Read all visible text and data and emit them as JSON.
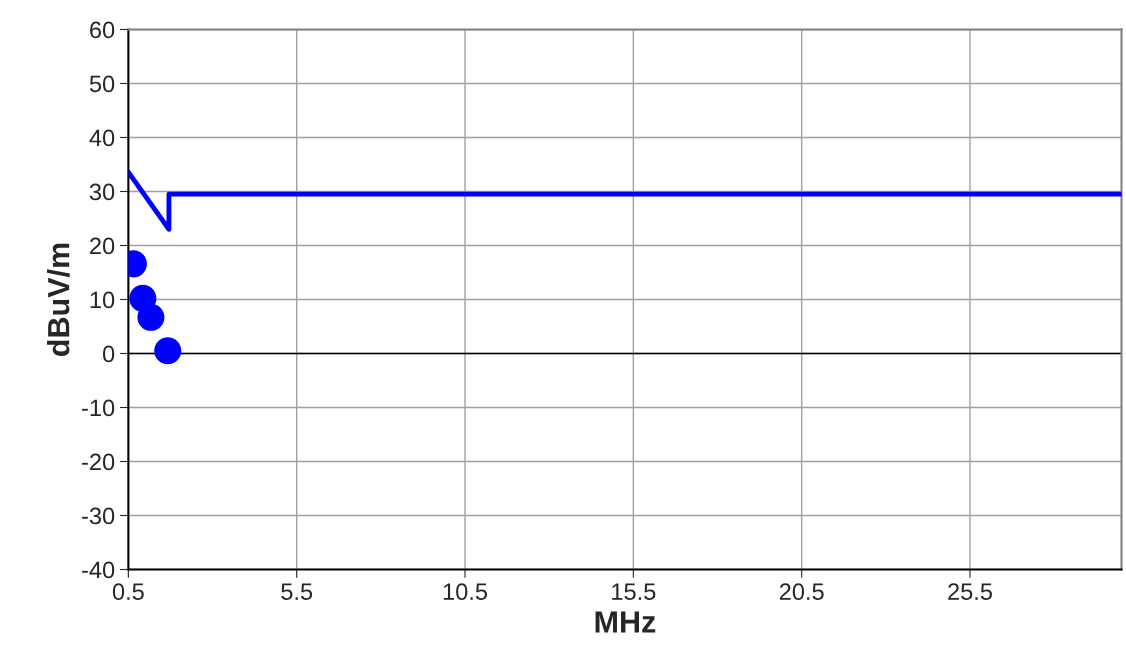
{
  "chart_data": {
    "type": "line",
    "xlabel": "MHz",
    "ylabel": "dBuV/m",
    "xlim": [
      0.5,
      30
    ],
    "xticks": [
      0.5,
      5.5,
      10.5,
      15.5,
      20.5,
      25.5
    ],
    "ylim": [
      -40,
      60
    ],
    "yticks": [
      -40,
      -30,
      -20,
      -10,
      0,
      10,
      20,
      30,
      40,
      50,
      60
    ],
    "grid": true,
    "legend": false,
    "series": [
      {
        "color": "#0000ff",
        "x": [
          0.5,
          1.705,
          1.705,
          30
        ],
        "values": [
          33.6,
          23.0,
          29.5,
          29.5
        ],
        "marker": "none",
        "line_style": "solid"
      },
      {
        "type": "scatter",
        "color": "#0000ff",
        "x": [
          0.65,
          0.93,
          1.17,
          1.67
        ],
        "values": [
          16.6,
          10.2,
          6.7,
          0.5
        ],
        "marker": "circle"
      }
    ]
  }
}
